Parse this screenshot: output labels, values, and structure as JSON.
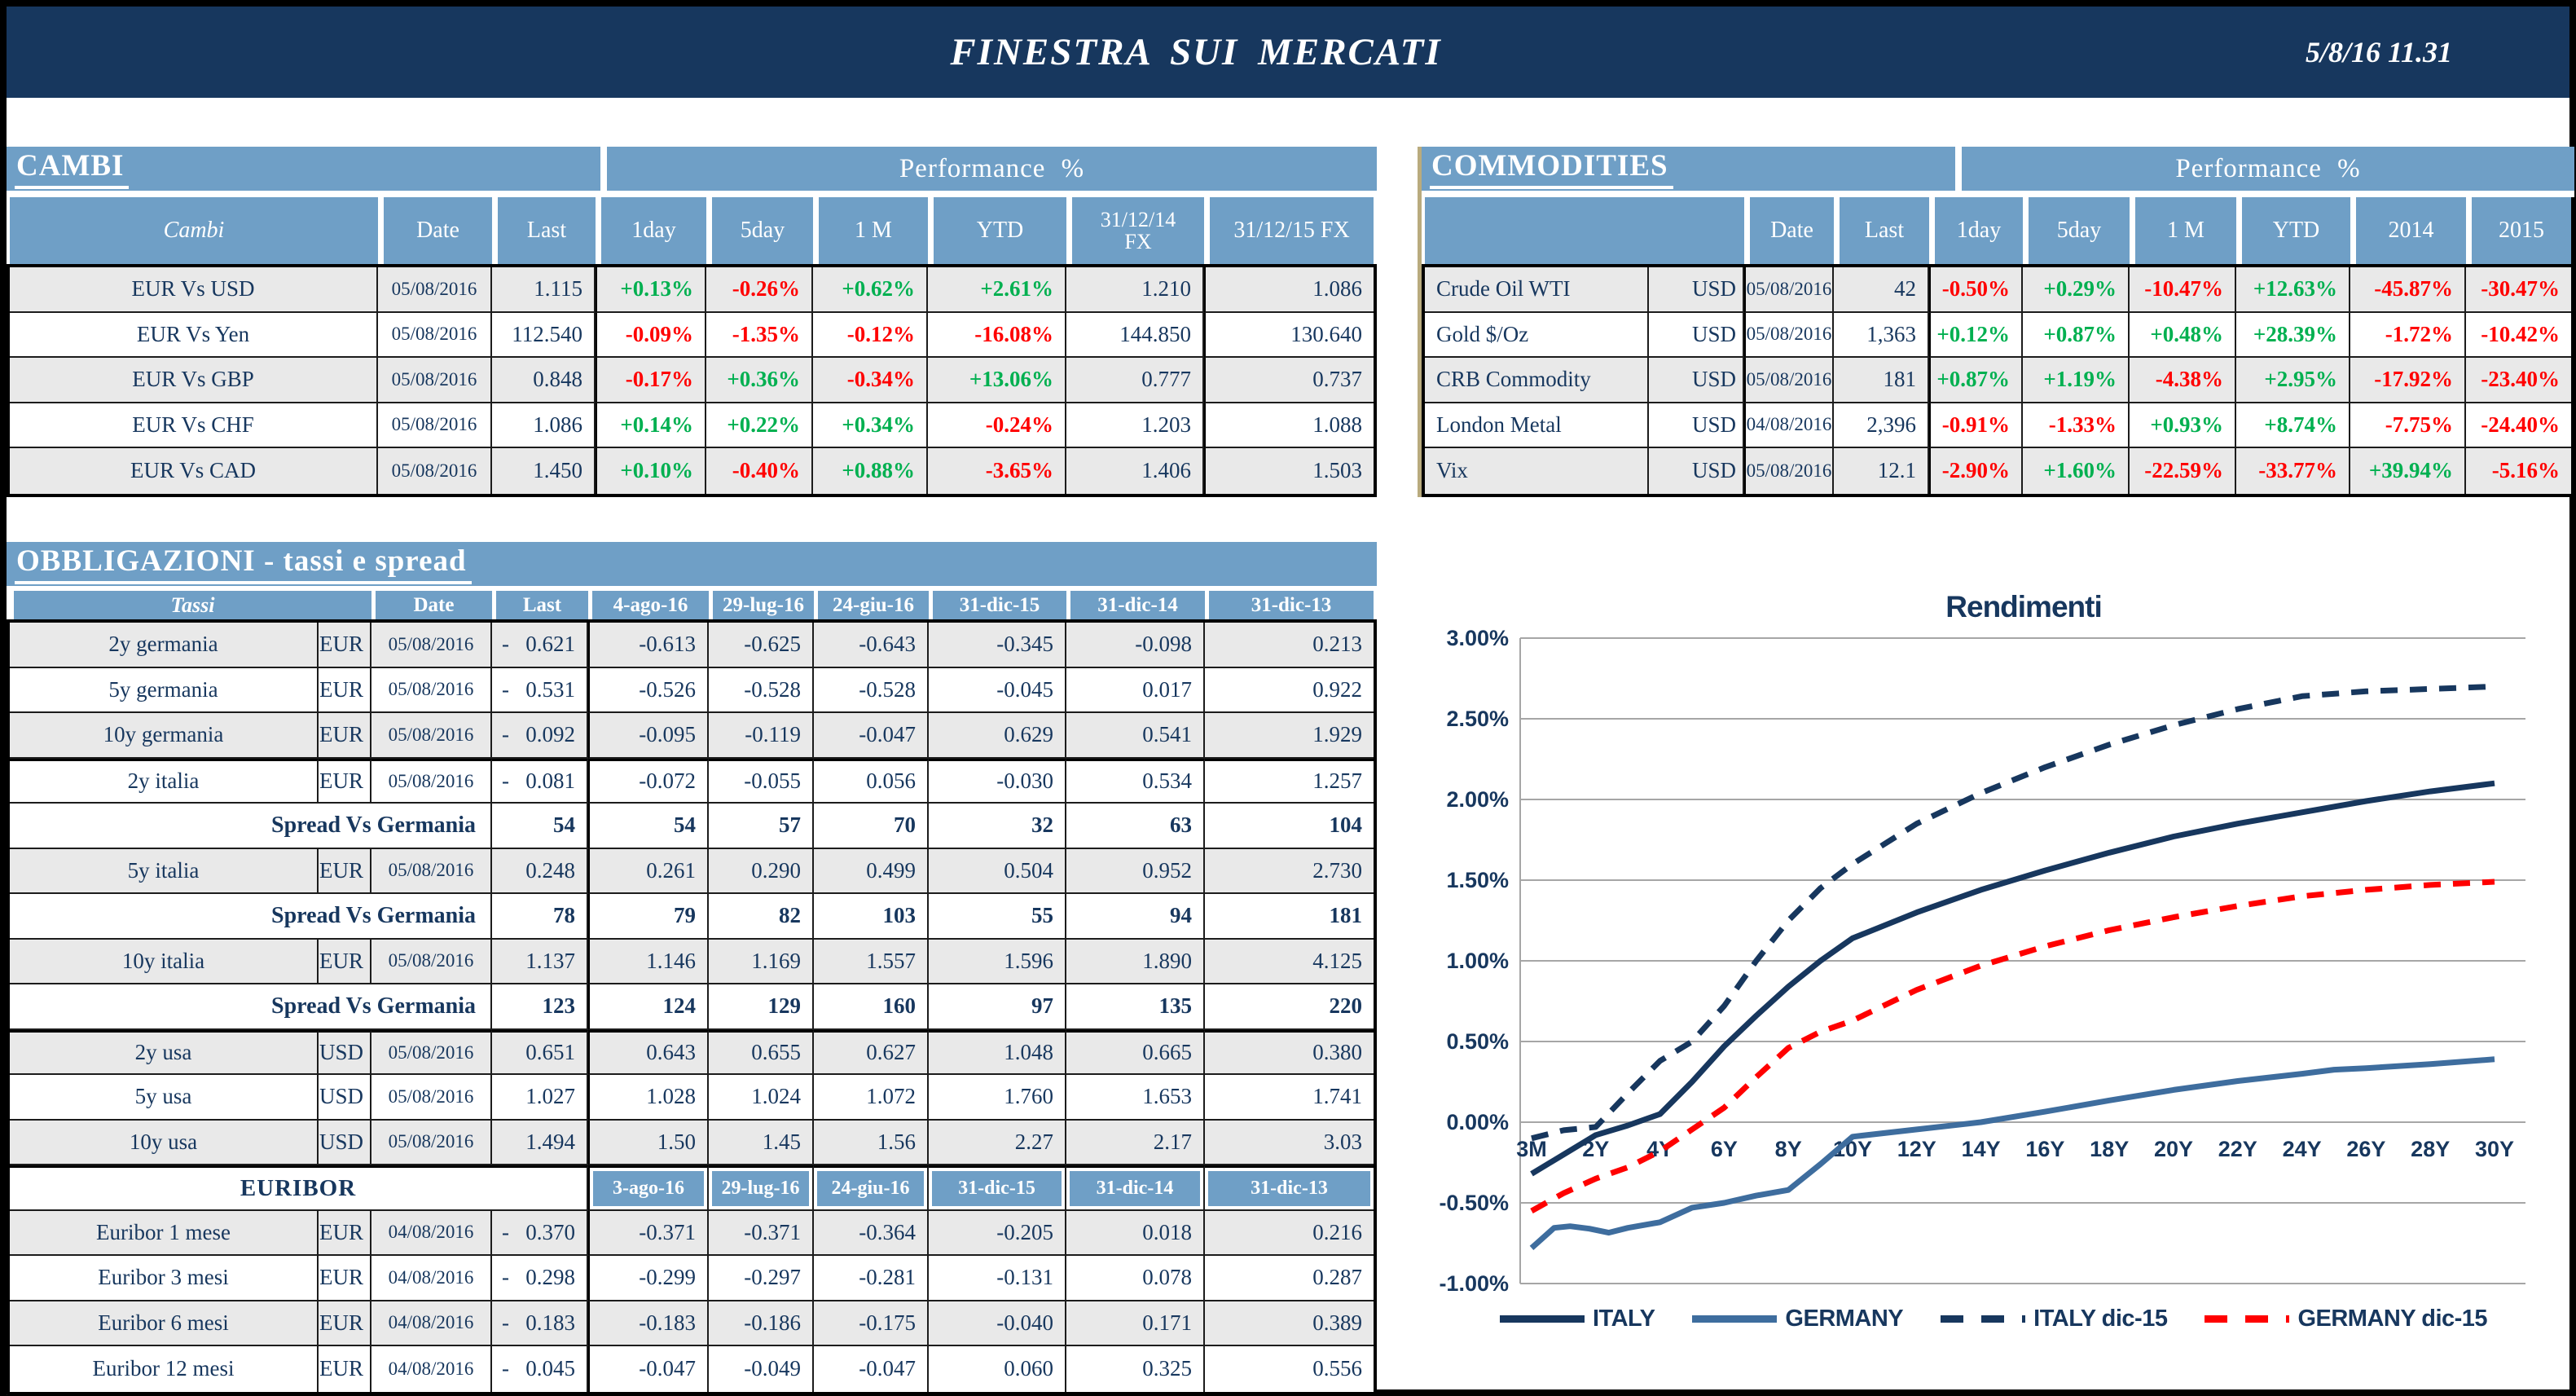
{
  "header": {
    "title": "FINESTRA SUI MERCATI",
    "datetime": "5/8/16 11.31"
  },
  "colors": {
    "navy": "#17375e",
    "header_blue": "#6f9fc6",
    "row_gray": "#e9e9e9",
    "green": "#00b050",
    "red": "#ff0000",
    "germany_blue": "#3e6d9e",
    "gridline": "#a6a6a6",
    "frame": "#000000"
  },
  "cambi": {
    "section_title": "CAMBI",
    "performance_title": "Performance %",
    "columns": [
      "Cambi",
      "Date",
      "Last",
      "1day",
      "5day",
      "1 M",
      "YTD",
      "31/12/14\nFX",
      "31/12/15  FX"
    ],
    "rows": [
      {
        "name": "EUR Vs USD",
        "date": "05/08/2016",
        "last": "1.115",
        "perf": [
          "+0.13%",
          "-0.26%",
          "+0.62%",
          "+2.61%"
        ],
        "fx": [
          "1.210",
          "1.086"
        ]
      },
      {
        "name": "EUR Vs Yen",
        "date": "05/08/2016",
        "last": "112.540",
        "perf": [
          "-0.09%",
          "-1.35%",
          "-0.12%",
          "-16.08%"
        ],
        "fx": [
          "144.850",
          "130.640"
        ]
      },
      {
        "name": "EUR Vs GBP",
        "date": "05/08/2016",
        "last": "0.848",
        "perf": [
          "-0.17%",
          "+0.36%",
          "-0.34%",
          "+13.06%"
        ],
        "fx": [
          "0.777",
          "0.737"
        ]
      },
      {
        "name": "EUR Vs CHF",
        "date": "05/08/2016",
        "last": "1.086",
        "perf": [
          "+0.14%",
          "+0.22%",
          "+0.34%",
          "-0.24%"
        ],
        "fx": [
          "1.203",
          "1.088"
        ]
      },
      {
        "name": "EUR Vs CAD",
        "date": "05/08/2016",
        "last": "1.450",
        "perf": [
          "+0.10%",
          "-0.40%",
          "+0.88%",
          "-3.65%"
        ],
        "fx": [
          "1.406",
          "1.503"
        ]
      }
    ]
  },
  "commodities": {
    "section_title": "COMMODITIES",
    "performance_title": "Performance %",
    "columns": [
      "",
      "Date",
      "Last",
      "1day",
      "5day",
      "1 M",
      "YTD",
      "2014",
      "2015"
    ],
    "rows": [
      {
        "name": "Crude Oil WTI",
        "unit": "USD",
        "date": "05/08/2016",
        "last": "42",
        "perf": [
          "-0.50%",
          "+0.29%",
          "-10.47%",
          "+12.63%",
          "-45.87%",
          "-30.47%"
        ]
      },
      {
        "name": "Gold $/Oz",
        "unit": "USD",
        "date": "05/08/2016",
        "last": "1,363",
        "perf": [
          "+0.12%",
          "+0.87%",
          "+0.48%",
          "+28.39%",
          "-1.72%",
          "-10.42%"
        ]
      },
      {
        "name": "CRB Commodity",
        "unit": "USD",
        "date": "05/08/2016",
        "last": "181",
        "perf": [
          "+0.87%",
          "+1.19%",
          "-4.38%",
          "+2.95%",
          "-17.92%",
          "-23.40%"
        ]
      },
      {
        "name": "London Metal",
        "unit": "USD",
        "date": "04/08/2016",
        "last": "2,396",
        "perf": [
          "-0.91%",
          "-1.33%",
          "+0.93%",
          "+8.74%",
          "-7.75%",
          "-24.40%"
        ]
      },
      {
        "name": "Vix",
        "unit": "USD",
        "date": "05/08/2016",
        "last": "12.1",
        "perf": [
          "-2.90%",
          "+1.60%",
          "-22.59%",
          "-33.77%",
          "+39.94%",
          "-5.16%"
        ]
      }
    ]
  },
  "obbligazioni": {
    "section_title": "OBBLIGAZIONI - tassi e spread",
    "columns": [
      "Tassi",
      "Date",
      "Last",
      "4-ago-16",
      "29-lug-16",
      "24-giu-16",
      "31-dic-15",
      "31-dic-14",
      "31-dic-13"
    ],
    "rows": [
      {
        "type": "data",
        "name": "2y germania",
        "unit": "EUR",
        "date": "05/08/2016",
        "last": "0.621",
        "last_negative": true,
        "values": [
          "-0.613",
          "-0.625",
          "-0.643",
          "-0.345",
          "-0.098",
          "0.213"
        ]
      },
      {
        "type": "data",
        "name": "5y germania",
        "unit": "EUR",
        "date": "05/08/2016",
        "last": "0.531",
        "last_negative": true,
        "values": [
          "-0.526",
          "-0.528",
          "-0.528",
          "-0.045",
          "0.017",
          "0.922"
        ]
      },
      {
        "type": "data",
        "name": "10y germania",
        "unit": "EUR",
        "date": "05/08/2016",
        "last": "0.092",
        "last_negative": true,
        "values": [
          "-0.095",
          "-0.119",
          "-0.047",
          "0.629",
          "0.541",
          "1.929"
        ]
      },
      {
        "type": "data",
        "name": "2y italia",
        "unit": "EUR",
        "date": "05/08/2016",
        "last": "0.081",
        "last_negative": true,
        "values": [
          "-0.072",
          "-0.055",
          "0.056",
          "-0.030",
          "0.534",
          "1.257"
        ]
      },
      {
        "type": "spread",
        "name": "Spread Vs Germania",
        "last": "54",
        "values": [
          "54",
          "57",
          "70",
          "32",
          "63",
          "104"
        ]
      },
      {
        "type": "data",
        "name": "5y italia",
        "unit": "EUR",
        "date": "05/08/2016",
        "last": "0.248",
        "last_negative": false,
        "values": [
          "0.261",
          "0.290",
          "0.499",
          "0.504",
          "0.952",
          "2.730"
        ]
      },
      {
        "type": "spread",
        "name": "Spread Vs Germania",
        "last": "78",
        "values": [
          "79",
          "82",
          "103",
          "55",
          "94",
          "181"
        ]
      },
      {
        "type": "data",
        "name": "10y italia",
        "unit": "EUR",
        "date": "05/08/2016",
        "last": "1.137",
        "last_negative": false,
        "values": [
          "1.146",
          "1.169",
          "1.557",
          "1.596",
          "1.890",
          "4.125"
        ]
      },
      {
        "type": "spread",
        "name": "Spread Vs Germania",
        "last": "123",
        "values": [
          "124",
          "129",
          "160",
          "97",
          "135",
          "220"
        ]
      },
      {
        "type": "data",
        "name": "2y usa",
        "unit": "USD",
        "date": "05/08/2016",
        "last": "0.651",
        "last_negative": false,
        "values": [
          "0.643",
          "0.655",
          "0.627",
          "1.048",
          "0.665",
          "0.380"
        ]
      },
      {
        "type": "data",
        "name": "5y usa",
        "unit": "USD",
        "date": "05/08/2016",
        "last": "1.027",
        "last_negative": false,
        "values": [
          "1.028",
          "1.024",
          "1.072",
          "1.760",
          "1.653",
          "1.741"
        ]
      },
      {
        "type": "data",
        "name": "10y usa",
        "unit": "USD",
        "date": "05/08/2016",
        "last": "1.494",
        "last_negative": false,
        "values": [
          "1.50",
          "1.45",
          "1.56",
          "2.27",
          "2.17",
          "3.03"
        ]
      },
      {
        "type": "subheader",
        "name": "EURIBOR",
        "columns": [
          "3-ago-16",
          "29-lug-16",
          "24-giu-16",
          "31-dic-15",
          "31-dic-14",
          "31-dic-13"
        ]
      },
      {
        "type": "data",
        "name": "Euribor 1 mese",
        "unit": "EUR",
        "date": "04/08/2016",
        "last": "0.370",
        "last_negative": true,
        "values": [
          "-0.371",
          "-0.371",
          "-0.364",
          "-0.205",
          "0.018",
          "0.216"
        ]
      },
      {
        "type": "data",
        "name": "Euribor 3 mesi",
        "unit": "EUR",
        "date": "04/08/2016",
        "last": "0.298",
        "last_negative": true,
        "values": [
          "-0.299",
          "-0.297",
          "-0.281",
          "-0.131",
          "0.078",
          "0.287"
        ]
      },
      {
        "type": "data",
        "name": "Euribor 6 mesi",
        "unit": "EUR",
        "date": "04/08/2016",
        "last": "0.183",
        "last_negative": true,
        "values": [
          "-0.183",
          "-0.186",
          "-0.175",
          "-0.040",
          "0.171",
          "0.389"
        ]
      },
      {
        "type": "data",
        "name": "Euribor 12 mesi",
        "unit": "EUR",
        "date": "04/08/2016",
        "last": "0.045",
        "last_negative": true,
        "values": [
          "-0.047",
          "-0.049",
          "-0.047",
          "0.060",
          "0.325",
          "0.556"
        ]
      }
    ]
  },
  "chart_data": {
    "type": "line",
    "title": "Rendimenti",
    "categories": [
      "3M",
      "2Y",
      "4Y",
      "6Y",
      "8Y",
      "10Y",
      "12Y",
      "14Y",
      "16Y",
      "18Y",
      "20Y",
      "22Y",
      "24Y",
      "26Y",
      "28Y",
      "30Y"
    ],
    "ylim": [
      -1.0,
      3.0
    ],
    "ytick_step": 0.5,
    "ytick_labels": [
      "3.00%",
      "2.50%",
      "2.00%",
      "1.50%",
      "1.00%",
      "0.50%",
      "0.00%",
      "-0.50%",
      "-1.00%"
    ],
    "grid": true,
    "legend_position": "bottom",
    "series": [
      {
        "name": "ITALY",
        "color": "#17375e",
        "dashed": false,
        "x_index": [
          0,
          0.5,
          1,
          1.5,
          2,
          2.5,
          3,
          3.5,
          4,
          4.5,
          5,
          6,
          7,
          8,
          9,
          10,
          11,
          12,
          13,
          14,
          15
        ],
        "values": [
          -0.32,
          -0.2,
          -0.08,
          -0.02,
          0.05,
          0.25,
          0.47,
          0.66,
          0.84,
          1.0,
          1.14,
          1.3,
          1.44,
          1.56,
          1.67,
          1.77,
          1.85,
          1.92,
          1.99,
          2.05,
          2.1
        ]
      },
      {
        "name": "GERMANY",
        "color": "#3e6d9e",
        "dashed": false,
        "x_index": [
          0,
          0.35,
          0.6,
          0.9,
          1.2,
          1.5,
          2,
          2.5,
          3,
          3.5,
          4,
          4.5,
          5,
          6,
          7,
          8,
          9,
          10,
          11,
          12,
          12.5,
          13,
          14,
          15
        ],
        "values": [
          -0.78,
          -0.655,
          -0.645,
          -0.66,
          -0.685,
          -0.655,
          -0.62,
          -0.53,
          -0.5,
          -0.455,
          -0.42,
          -0.26,
          -0.09,
          -0.045,
          0.0,
          0.065,
          0.135,
          0.2,
          0.255,
          0.3,
          0.325,
          0.335,
          0.36,
          0.39
        ]
      },
      {
        "name": "ITALY dic-15",
        "color": "#17375e",
        "dashed": true,
        "x_index": [
          0,
          0.5,
          1,
          1.5,
          2,
          2.5,
          3,
          3.5,
          4,
          4.5,
          5,
          6,
          7,
          8,
          9,
          10,
          11,
          12,
          13,
          14,
          15
        ],
        "values": [
          -0.1,
          -0.05,
          -0.03,
          0.18,
          0.38,
          0.5,
          0.72,
          1.0,
          1.25,
          1.45,
          1.6,
          1.85,
          2.04,
          2.2,
          2.34,
          2.46,
          2.56,
          2.64,
          2.67,
          2.685,
          2.7
        ]
      },
      {
        "name": "GERMANY dic-15",
        "color": "#ff0000",
        "dashed": true,
        "x_index": [
          0,
          0.5,
          1,
          1.5,
          2,
          2.5,
          3,
          3.5,
          4,
          4.5,
          5,
          6,
          7,
          8,
          9,
          10,
          11,
          12,
          13,
          14,
          15
        ],
        "values": [
          -0.55,
          -0.44,
          -0.35,
          -0.28,
          -0.18,
          -0.045,
          0.09,
          0.28,
          0.46,
          0.56,
          0.63,
          0.82,
          0.97,
          1.09,
          1.19,
          1.27,
          1.34,
          1.4,
          1.44,
          1.47,
          1.49
        ]
      }
    ]
  }
}
